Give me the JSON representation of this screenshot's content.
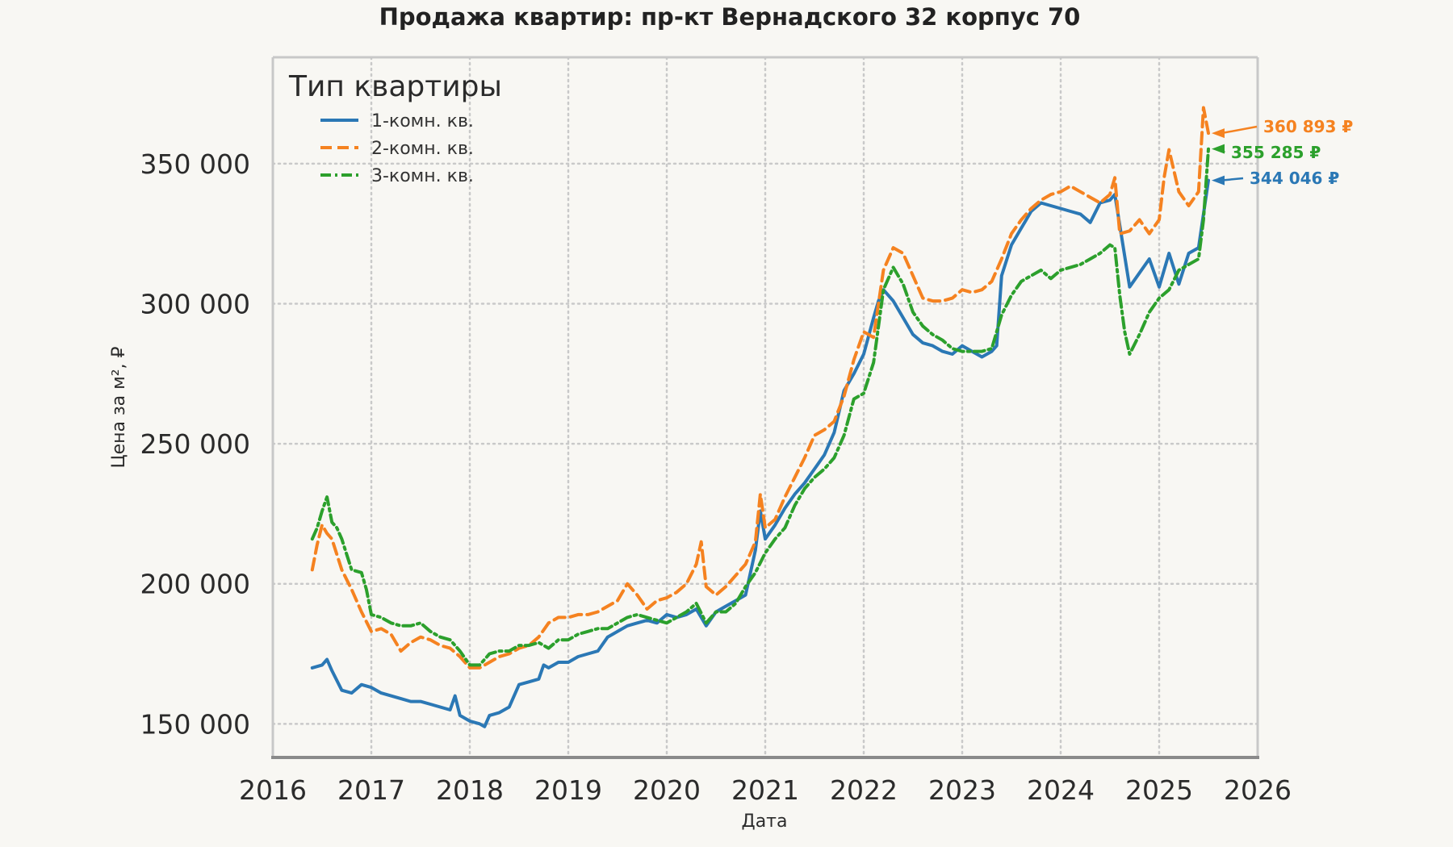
{
  "chart_data": {
    "type": "line",
    "title": "Продажа квартир: пр-кт Вернадского 32 корпус 70",
    "xlabel": "Дата",
    "ylabel": "Цена за м², ₽",
    "xlim": [
      2016.0,
      2026.0
    ],
    "ylim": [
      138000,
      388000
    ],
    "x_ticks": [
      "2016",
      "2017",
      "2018",
      "2019",
      "2020",
      "2021",
      "2022",
      "2023",
      "2024",
      "2025",
      "2026"
    ],
    "y_ticks": [
      "150 000",
      "200 000",
      "250 000",
      "300 000",
      "350 000"
    ],
    "grid": true,
    "legend": {
      "title": "Тип квартиры",
      "placement": "top-left"
    },
    "series": [
      {
        "name": "1-комн. кв.",
        "color": "#2b78b5",
        "style": "solid",
        "x": [
          2016.4,
          2016.5,
          2016.55,
          2016.6,
          2016.7,
          2016.8,
          2016.9,
          2017.0,
          2017.1,
          2017.2,
          2017.3,
          2017.4,
          2017.5,
          2017.6,
          2017.7,
          2017.8,
          2017.85,
          2017.9,
          2018.0,
          2018.1,
          2018.15,
          2018.2,
          2018.3,
          2018.4,
          2018.5,
          2018.6,
          2018.7,
          2018.75,
          2018.8,
          2018.9,
          2019.0,
          2019.1,
          2019.2,
          2019.3,
          2019.4,
          2019.5,
          2019.6,
          2019.7,
          2019.8,
          2019.9,
          2020.0,
          2020.1,
          2020.2,
          2020.3,
          2020.4,
          2020.5,
          2020.6,
          2020.7,
          2020.8,
          2020.9,
          2020.95,
          2021.0,
          2021.1,
          2021.2,
          2021.3,
          2021.4,
          2021.5,
          2021.6,
          2021.7,
          2021.8,
          2021.9,
          2022.0,
          2022.1,
          2022.15,
          2022.2,
          2022.3,
          2022.4,
          2022.5,
          2022.6,
          2022.7,
          2022.8,
          2022.9,
          2023.0,
          2023.1,
          2023.2,
          2023.3,
          2023.35,
          2023.4,
          2023.5,
          2023.6,
          2023.7,
          2023.8,
          2023.9,
          2024.0,
          2024.1,
          2024.2,
          2024.3,
          2024.4,
          2024.5,
          2024.55,
          2024.6,
          2024.7,
          2024.8,
          2024.9,
          2025.0,
          2025.1,
          2025.2,
          2025.3,
          2025.4,
          2025.5
        ],
        "y": [
          170000,
          171000,
          173000,
          169000,
          162000,
          161000,
          164000,
          163000,
          161000,
          160000,
          159000,
          158000,
          158000,
          157000,
          156000,
          155000,
          160000,
          153000,
          151000,
          150000,
          149000,
          153000,
          154000,
          156000,
          164000,
          165000,
          166000,
          171000,
          170000,
          172000,
          172000,
          174000,
          175000,
          176000,
          181000,
          183000,
          185000,
          186000,
          187000,
          186000,
          189000,
          188000,
          189000,
          191000,
          185000,
          190000,
          192000,
          194000,
          196000,
          212000,
          226000,
          216000,
          221000,
          227000,
          232000,
          236000,
          241000,
          246000,
          254000,
          269000,
          275000,
          282000,
          295000,
          301000,
          305000,
          301000,
          295000,
          289000,
          286000,
          285000,
          283000,
          282000,
          285000,
          283000,
          281000,
          283000,
          285000,
          310000,
          321000,
          327000,
          333000,
          336000,
          335000,
          334000,
          333000,
          332000,
          329000,
          336000,
          337000,
          339000,
          328000,
          306000,
          311000,
          316000,
          306000,
          318000,
          307000,
          318000,
          320000,
          344046
        ]
      },
      {
        "name": "2-комн. кв.",
        "color": "#f58220",
        "style": "dashed",
        "x": [
          2016.4,
          2016.45,
          2016.5,
          2016.55,
          2016.6,
          2016.7,
          2016.8,
          2016.9,
          2017.0,
          2017.1,
          2017.2,
          2017.3,
          2017.4,
          2017.5,
          2017.6,
          2017.7,
          2017.8,
          2017.9,
          2018.0,
          2018.1,
          2018.2,
          2018.3,
          2018.4,
          2018.5,
          2018.6,
          2018.7,
          2018.8,
          2018.9,
          2019.0,
          2019.1,
          2019.2,
          2019.3,
          2019.4,
          2019.5,
          2019.6,
          2019.7,
          2019.8,
          2019.9,
          2020.0,
          2020.1,
          2020.2,
          2020.3,
          2020.35,
          2020.4,
          2020.5,
          2020.6,
          2020.7,
          2020.8,
          2020.9,
          2020.95,
          2021.0,
          2021.1,
          2021.2,
          2021.3,
          2021.4,
          2021.5,
          2021.6,
          2021.7,
          2021.8,
          2021.9,
          2022.0,
          2022.1,
          2022.2,
          2022.3,
          2022.4,
          2022.5,
          2022.6,
          2022.7,
          2022.8,
          2022.9,
          2023.0,
          2023.1,
          2023.2,
          2023.3,
          2023.4,
          2023.5,
          2023.6,
          2023.7,
          2023.8,
          2023.9,
          2024.0,
          2024.1,
          2024.2,
          2024.3,
          2024.4,
          2024.5,
          2024.55,
          2024.6,
          2024.7,
          2024.8,
          2024.9,
          2025.0,
          2025.05,
          2025.1,
          2025.2,
          2025.3,
          2025.4,
          2025.45,
          2025.5
        ],
        "y": [
          205000,
          214000,
          221000,
          218000,
          216000,
          205000,
          198000,
          190000,
          183000,
          184000,
          182000,
          176000,
          179000,
          181000,
          180000,
          178000,
          177000,
          174000,
          170000,
          170000,
          172000,
          174000,
          175000,
          177000,
          178000,
          181000,
          186000,
          188000,
          188000,
          189000,
          189000,
          190000,
          192000,
          194000,
          200000,
          196000,
          191000,
          194000,
          195000,
          197000,
          200000,
          207000,
          215000,
          199000,
          196000,
          199000,
          203000,
          207000,
          215000,
          232000,
          220000,
          223000,
          231000,
          238000,
          245000,
          253000,
          255000,
          258000,
          267000,
          280000,
          290000,
          288000,
          312000,
          320000,
          318000,
          310000,
          302000,
          301000,
          301000,
          302000,
          305000,
          304000,
          305000,
          308000,
          316000,
          325000,
          330000,
          334000,
          337000,
          339000,
          340000,
          342000,
          340000,
          338000,
          336000,
          339000,
          345000,
          325000,
          326000,
          330000,
          325000,
          330000,
          345000,
          355000,
          340000,
          335000,
          340000,
          370000,
          360893
        ]
      },
      {
        "name": "3-комн. кв.",
        "color": "#2ca02c",
        "style": "dashdot",
        "x": [
          2016.4,
          2016.45,
          2016.5,
          2016.55,
          2016.6,
          2016.65,
          2016.7,
          2016.8,
          2016.9,
          2016.95,
          2017.0,
          2017.1,
          2017.2,
          2017.3,
          2017.4,
          2017.5,
          2017.6,
          2017.7,
          2017.8,
          2017.9,
          2018.0,
          2018.1,
          2018.2,
          2018.3,
          2018.4,
          2018.5,
          2018.6,
          2018.7,
          2018.8,
          2018.9,
          2019.0,
          2019.1,
          2019.2,
          2019.3,
          2019.4,
          2019.5,
          2019.6,
          2019.7,
          2019.8,
          2019.9,
          2020.0,
          2020.1,
          2020.2,
          2020.3,
          2020.4,
          2020.5,
          2020.6,
          2020.7,
          2020.8,
          2020.9,
          2021.0,
          2021.1,
          2021.2,
          2021.3,
          2021.4,
          2021.5,
          2021.6,
          2021.7,
          2021.8,
          2021.9,
          2022.0,
          2022.1,
          2022.2,
          2022.3,
          2022.4,
          2022.5,
          2022.6,
          2022.7,
          2022.8,
          2022.9,
          2023.0,
          2023.1,
          2023.2,
          2023.3,
          2023.4,
          2023.5,
          2023.6,
          2023.7,
          2023.8,
          2023.9,
          2024.0,
          2024.1,
          2024.2,
          2024.3,
          2024.4,
          2024.5,
          2024.55,
          2024.6,
          2024.65,
          2024.7,
          2024.8,
          2024.9,
          2025.0,
          2025.1,
          2025.2,
          2025.3,
          2025.4,
          2025.45,
          2025.5
        ],
        "y": [
          216000,
          220000,
          226000,
          231000,
          222000,
          220000,
          216000,
          205000,
          204000,
          198000,
          189000,
          188000,
          186000,
          185000,
          185000,
          186000,
          183000,
          181000,
          180000,
          176000,
          171000,
          171000,
          175000,
          176000,
          176000,
          178000,
          178000,
          179000,
          177000,
          180000,
          180000,
          182000,
          183000,
          184000,
          184000,
          186000,
          188000,
          189000,
          188000,
          187000,
          186000,
          188000,
          190000,
          193000,
          186000,
          190000,
          190000,
          193000,
          199000,
          204000,
          211000,
          216000,
          220000,
          228000,
          234000,
          238000,
          241000,
          245000,
          253000,
          266000,
          268000,
          279000,
          305000,
          313000,
          307000,
          297000,
          292000,
          289000,
          287000,
          284000,
          283000,
          283000,
          283000,
          284000,
          296000,
          303000,
          308000,
          310000,
          312000,
          309000,
          312000,
          313000,
          314000,
          316000,
          318000,
          321000,
          320000,
          303000,
          290000,
          282000,
          289000,
          297000,
          302000,
          305000,
          312000,
          314000,
          316000,
          330000,
          355285
        ]
      }
    ],
    "annotations": [
      {
        "series": "2-комн. кв.",
        "label": "360 893 ₽",
        "x": 2025.5,
        "y": 360893
      },
      {
        "series": "3-комн. кв.",
        "label": "355 285 ₽",
        "x": 2025.5,
        "y": 355285
      },
      {
        "series": "1-комн. кв.",
        "label": "344 046 ₽",
        "x": 2025.5,
        "y": 344046
      }
    ]
  }
}
